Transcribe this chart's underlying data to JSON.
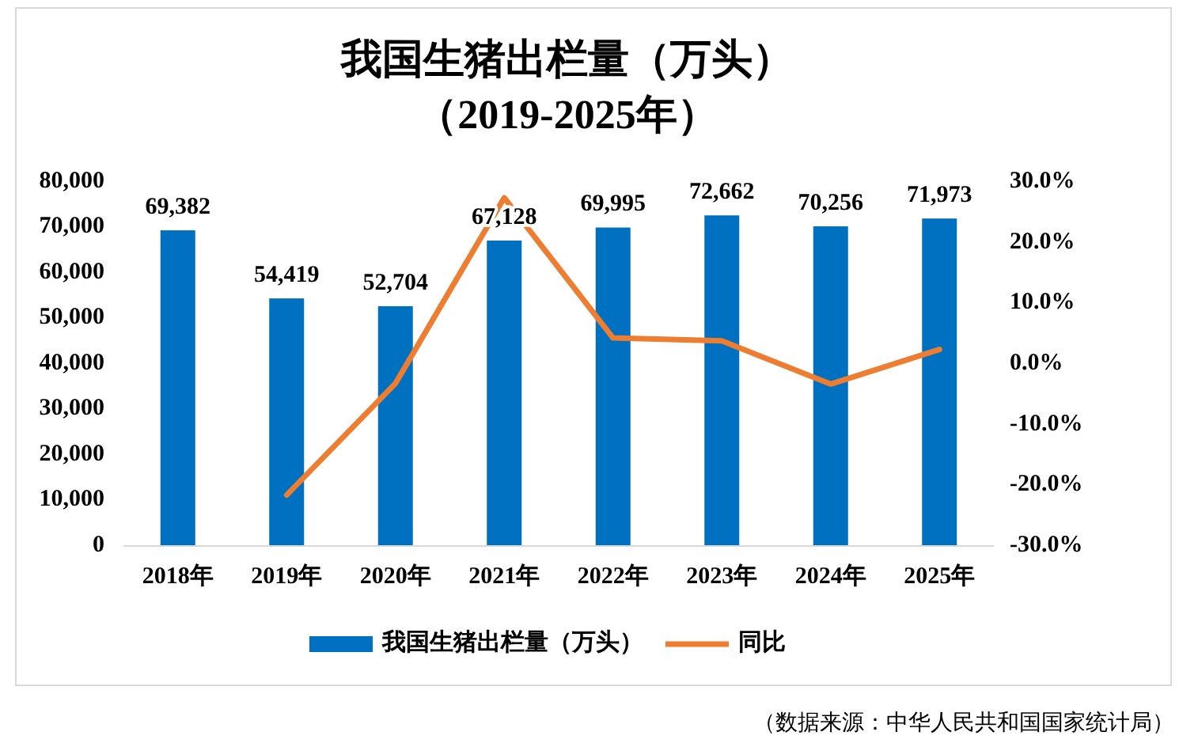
{
  "chart_data": {
    "type": "bar",
    "title": "我国生猪出栏量（万头）",
    "subtitle": "（2019-2025年）",
    "categories": [
      "2018年",
      "2019年",
      "2020年",
      "2021年",
      "2022年",
      "2023年",
      "2024年",
      "2025年"
    ],
    "series": [
      {
        "name": "我国生猪出栏量（万头）",
        "color": "#0070c0",
        "values": [
          69382,
          54419,
          52704,
          67128,
          69995,
          72662,
          70256,
          71973
        ],
        "value_labels": [
          "69,382",
          "54,419",
          "52,704",
          "67,128",
          "69,995",
          "72,662",
          "70,256",
          "71,973"
        ]
      },
      {
        "name": "同比",
        "type": "line",
        "axis": "y2",
        "color": "#ed7d31",
        "values": [
          null,
          -21.6,
          -3.2,
          27.4,
          4.3,
          3.8,
          -3.3,
          2.4
        ]
      }
    ],
    "ylim": [
      0,
      80000
    ],
    "yticks": [
      0,
      {
        "value": 10000,
        "label": "10,000"
      },
      {
        "value": 20000,
        "label": "20,000"
      },
      {
        "value": 30000,
        "label": "30,000"
      },
      {
        "value": 40000,
        "label": "40,000"
      },
      {
        "value": 50000,
        "label": "50,000"
      },
      {
        "value": 60000,
        "label": "60,000"
      },
      {
        "value": 70000,
        "label": "70,000"
      },
      {
        "value": 80000,
        "label": "80,000"
      }
    ],
    "y2lim": [
      -30,
      30
    ],
    "y2ticks": [
      {
        "value": -30,
        "label": "-30.0%"
      },
      {
        "value": -20,
        "label": "-20.0%"
      },
      {
        "value": -10,
        "label": "-10.0%"
      },
      {
        "value": 0,
        "label": "0.0%"
      },
      {
        "value": 10,
        "label": "10.0%"
      },
      {
        "value": 20,
        "label": "20.0%"
      },
      {
        "value": 30,
        "label": "30.0%"
      }
    ],
    "grid": false,
    "legend": "bottom",
    "marker": "none",
    "line_style": "solid",
    "annotations": [
      "（数据来源：中华人民共和国国家统计局）"
    ]
  }
}
